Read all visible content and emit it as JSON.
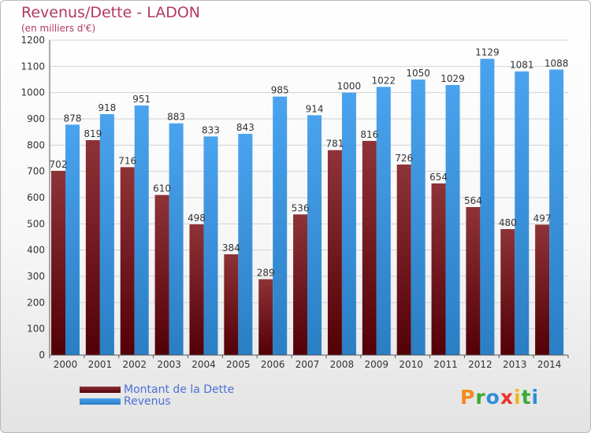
{
  "chart_data": {
    "type": "bar",
    "title": "Revenus/Dette - LADON",
    "subtitle": "(en milliers d'€)",
    "xlabel": "",
    "ylabel": "",
    "ylim": [
      0,
      1200
    ],
    "yticks": [
      0,
      100,
      200,
      300,
      400,
      500,
      600,
      700,
      800,
      900,
      1000,
      1100,
      1200
    ],
    "grid": true,
    "legend_position": "bottom-left",
    "categories": [
      "2000",
      "2001",
      "2002",
      "2003",
      "2004",
      "2005",
      "2006",
      "2007",
      "2008",
      "2009",
      "2010",
      "2011",
      "2012",
      "2013",
      "2014"
    ],
    "series": [
      {
        "name": "Montant de la Dette",
        "color": "#7a1e22",
        "values": [
          702,
          819,
          716,
          610,
          498,
          384,
          289,
          536,
          781,
          816,
          726,
          654,
          564,
          480,
          497
        ]
      },
      {
        "name": "Revenus",
        "color": "#3c97e6",
        "values": [
          878,
          918,
          951,
          883,
          833,
          843,
          985,
          914,
          1000,
          1022,
          1050,
          1029,
          1129,
          1081,
          1088
        ]
      }
    ]
  },
  "logo": {
    "letters": [
      {
        "ch": "P",
        "color": "#f28c1c"
      },
      {
        "ch": "r",
        "color": "#3aaa35"
      },
      {
        "ch": "o",
        "color": "#2d8fd8"
      },
      {
        "ch": "x",
        "color": "#e8342e"
      },
      {
        "ch": "i",
        "color": "#f2b71c"
      },
      {
        "ch": "t",
        "color": "#3aaa35"
      },
      {
        "ch": "i",
        "color": "#2d8fd8"
      }
    ]
  }
}
